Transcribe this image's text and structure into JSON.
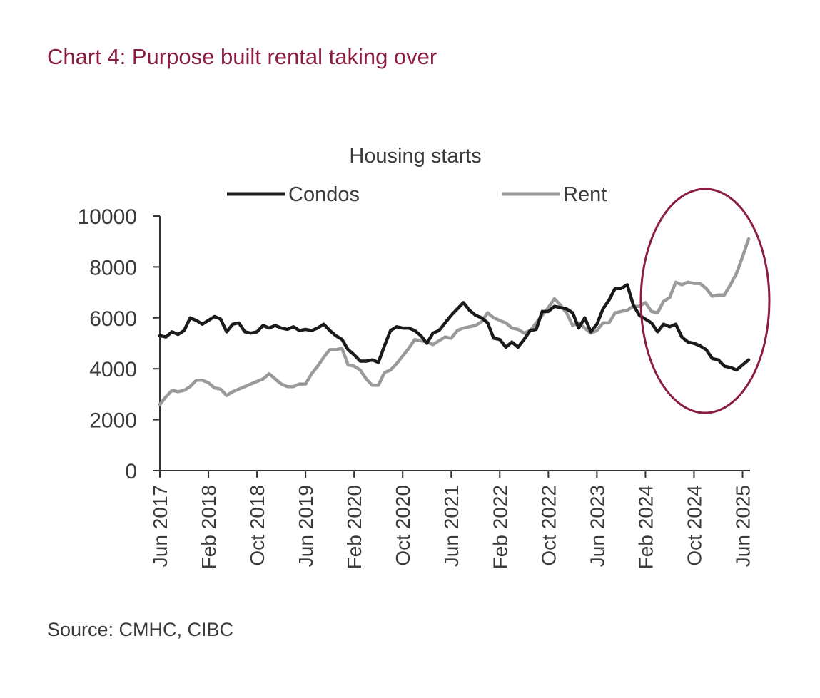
{
  "title": "Chart 4: Purpose built rental taking over",
  "source": "Source: CMHC, CIBC",
  "colors": {
    "title": "#8b1e3f",
    "condos": "#1a1a1a",
    "rent": "#9a9a9a",
    "highlight": "#8b1e3f",
    "axis": "#333333",
    "text": "#3a3a3a"
  },
  "chart_data": {
    "type": "line",
    "title": "Housing starts",
    "xlabel": "",
    "ylabel": "",
    "ylim": [
      0,
      10000
    ],
    "yticks": [
      "0",
      "2000",
      "4000",
      "6000",
      "8000",
      "10000"
    ],
    "grid": false,
    "legend_position": "top",
    "x_tick_labels": [
      "Jun 2017",
      "Feb 2018",
      "Oct 2018",
      "Jun 2019",
      "Feb 2020",
      "Oct 2020",
      "Jun 2021",
      "Feb 2022",
      "Oct 2022",
      "Jun 2023",
      "Feb 2024",
      "Oct 2024",
      "Jun 2025"
    ],
    "x_start": "Jun 2017",
    "x_interval": "month",
    "annotation": "highlight ellipse around Jan 2024 - Jul 2025",
    "series": [
      {
        "name": "Condos",
        "values": [
          5300,
          5250,
          5450,
          5350,
          5500,
          6000,
          5900,
          5750,
          5900,
          6050,
          5950,
          5450,
          5750,
          5800,
          5450,
          5400,
          5450,
          5700,
          5600,
          5700,
          5600,
          5550,
          5650,
          5500,
          5550,
          5500,
          5600,
          5750,
          5500,
          5300,
          5150,
          4750,
          4550,
          4300,
          4300,
          4350,
          4250,
          4900,
          5500,
          5650,
          5600,
          5600,
          5500,
          5300,
          5000,
          5400,
          5500,
          5800,
          6100,
          6350,
          6600,
          6300,
          6100,
          6000,
          5800,
          5200,
          5150,
          4850,
          5050,
          4850,
          5150,
          5500,
          5550,
          6250,
          6250,
          6450,
          6400,
          6350,
          6200,
          5600,
          6000,
          5450,
          5750,
          6350,
          6700,
          7150,
          7150,
          7300,
          6500,
          6100,
          5950,
          5800,
          5450,
          5750,
          5650,
          5750,
          5250,
          5050,
          5000,
          4900,
          4750,
          4400,
          4350,
          4100,
          4050,
          3950,
          4150,
          4350
        ]
      },
      {
        "name": "Rent",
        "values": [
          2600,
          2900,
          3150,
          3100,
          3150,
          3300,
          3550,
          3550,
          3450,
          3250,
          3200,
          2950,
          3100,
          3200,
          3300,
          3400,
          3500,
          3600,
          3800,
          3600,
          3400,
          3300,
          3300,
          3400,
          3400,
          3800,
          4100,
          4450,
          4750,
          4750,
          4800,
          4150,
          4100,
          3950,
          3600,
          3350,
          3350,
          3850,
          3950,
          4200,
          4500,
          4800,
          5150,
          5100,
          5050,
          4950,
          5100,
          5250,
          5200,
          5500,
          5600,
          5650,
          5700,
          5850,
          6200,
          6000,
          5900,
          5800,
          5600,
          5550,
          5400,
          5500,
          5800,
          6100,
          6400,
          6750,
          6500,
          6200,
          5700,
          5800,
          5600,
          5400,
          5500,
          5800,
          5800,
          6200,
          6250,
          6300,
          6450,
          6450,
          6600,
          6250,
          6200,
          6650,
          6800,
          7400,
          7300,
          7400,
          7350,
          7350,
          7150,
          6850,
          6900,
          6900,
          7300,
          7750,
          8400,
          9100
        ]
      }
    ]
  }
}
